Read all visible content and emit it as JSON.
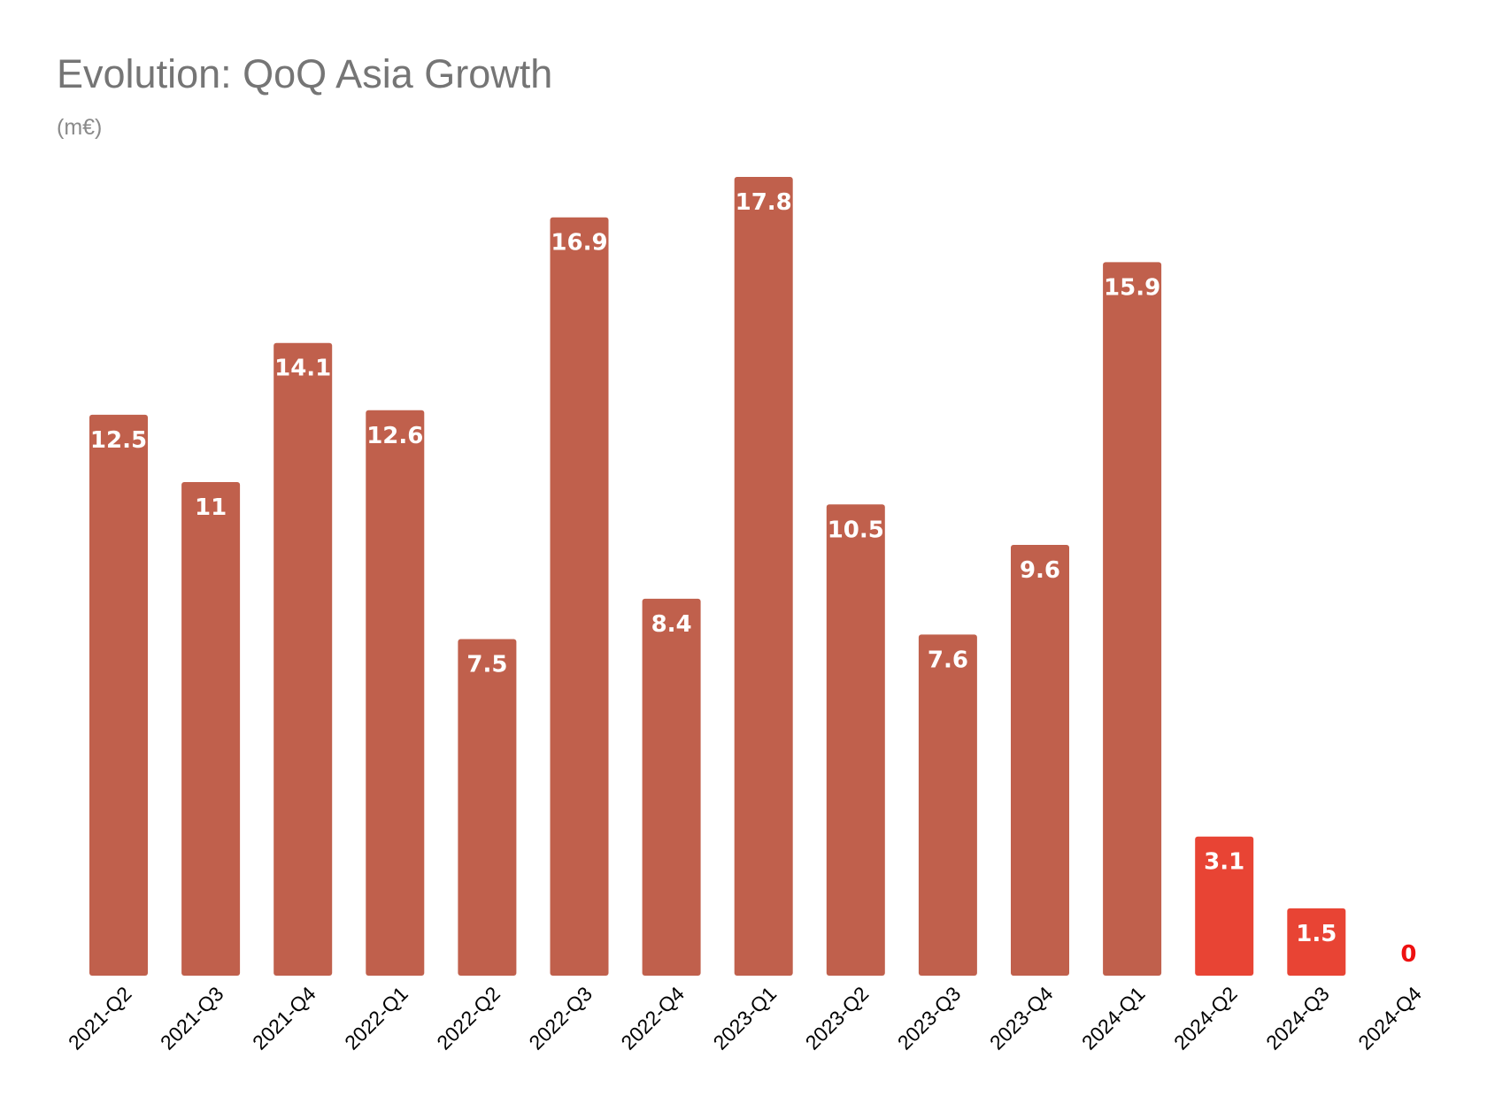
{
  "chart_data": {
    "type": "bar",
    "title": "Evolution: QoQ Asia Growth",
    "subtitle": "(m€)",
    "xlabel": "",
    "ylabel": "",
    "categories": [
      "2021-Q2",
      "2021-Q3",
      "2021-Q4",
      "2022-Q1",
      "2022-Q2",
      "2022-Q3",
      "2022-Q4",
      "2023-Q1",
      "2023-Q2",
      "2023-Q3",
      "2023-Q4",
      "2024-Q1",
      "2024-Q2",
      "2024-Q3",
      "2024-Q4"
    ],
    "values": [
      12.5,
      11,
      14.1,
      12.6,
      7.5,
      16.9,
      8.4,
      17.8,
      10.5,
      7.6,
      9.6,
      15.9,
      3.1,
      1.5,
      0
    ],
    "data_labels": [
      "12.5",
      "11",
      "14.1",
      "12.6",
      "7.5",
      "16.9",
      "8.4",
      "17.8",
      "10.5",
      "7.6",
      "9.6",
      "15.9",
      "3.1",
      "1.5",
      "0"
    ],
    "highlighted": [
      false,
      false,
      false,
      false,
      false,
      false,
      false,
      false,
      false,
      false,
      false,
      false,
      true,
      true,
      true
    ],
    "ylim": [
      0,
      17.8
    ],
    "grid": false,
    "legend": "none",
    "colors": {
      "bar": "#c0604c",
      "highlight": "#e84434",
      "label_on_bar": "#ffffff",
      "label_zero": "#ee1111"
    }
  }
}
